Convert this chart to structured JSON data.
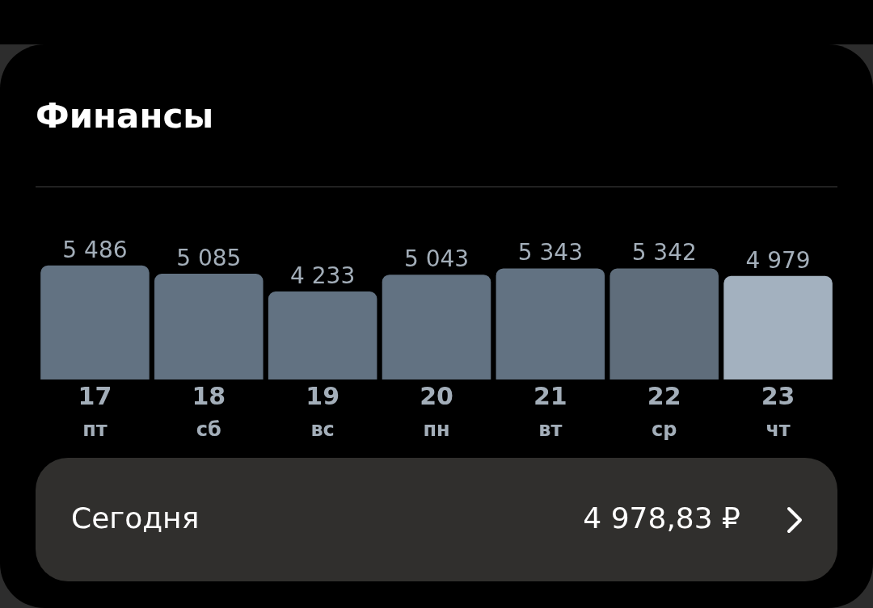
{
  "chart_data": {
    "type": "bar",
    "title": "Финансы",
    "categories": [
      "17\nпт",
      "18\nсб",
      "19\nвс",
      "20\nпн",
      "21\nвт",
      "22\nср",
      "23\nчт"
    ],
    "values": [
      5486,
      5085,
      4233,
      5043,
      5343,
      5342,
      4979
    ],
    "value_labels": [
      "5 486",
      "5 085",
      "4 233",
      "5 043",
      "5 343",
      "5 342",
      "4 979"
    ],
    "colors": [
      "#627282",
      "#627282",
      "#627282",
      "#627282",
      "#627282",
      "#5f6d7b",
      "#a3b1bf"
    ],
    "annotations": [
      "Сегодня",
      "4 978,83 ₽"
    ],
    "grid": false,
    "legend": false
  }
}
